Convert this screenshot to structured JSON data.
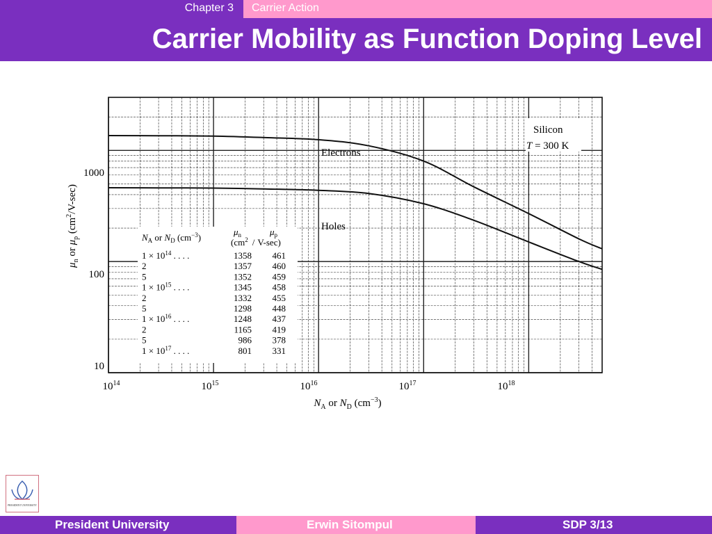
{
  "header": {
    "chapter": "Chapter 3",
    "section": "Carrier Action",
    "title": "Carrier Mobility as Function Doping Level"
  },
  "footer": {
    "left": "President University",
    "center": "Erwin Sitompul",
    "right": "SDP 3/13"
  },
  "logo": {
    "name": "PRESIDENT UNIVERSITY"
  },
  "chart_data": {
    "type": "line",
    "xscale": "log",
    "yscale": "log",
    "xlim": [
      100000000000000.0,
      5e+18
    ],
    "ylim": [
      10,
      3000
    ],
    "x_ticks": [
      "10",
      "10",
      "10",
      "10",
      "10"
    ],
    "x_tick_exps": [
      "14",
      "15",
      "16",
      "17",
      "18"
    ],
    "y_ticks": [
      "1000",
      "100",
      "10"
    ],
    "xlabel": {
      "a": "N",
      "a_sub": "A",
      "or": " or ",
      "b": "N",
      "b_sub": "D",
      "unit": " (cm",
      "unit_sup": "−3",
      "close": ")"
    },
    "ylabel": {
      "a": "μ",
      "a_sub": "n",
      "or": " or ",
      "b": "μ",
      "b_sub": "p",
      "unit": " (cm",
      "unit_sup": "2",
      "close": "/V-sec)"
    },
    "annotation": {
      "line1": "Silicon",
      "line2_a": "T",
      "line2_b": " = 300 K"
    },
    "series": [
      {
        "name": "Electrons",
        "x": [
          100000000000000.0,
          300000000000000.0,
          1000000000000000.0,
          3000000000000000.0,
          1e+16,
          3e+16,
          1e+17,
          3e+17,
          1e+18,
          3e+18,
          5e+18
        ],
        "values": [
          1358,
          1355,
          1345,
          1305,
          1248,
          1100,
          801,
          470,
          270,
          160,
          130
        ]
      },
      {
        "name": "Holes",
        "x": [
          100000000000000.0,
          300000000000000.0,
          1000000000000000.0,
          3000000000000000.0,
          1e+16,
          3e+16,
          1e+17,
          3e+17,
          1e+18,
          3e+18,
          5e+18
        ],
        "values": [
          461,
          460,
          458,
          450,
          437,
          410,
          331,
          235,
          150,
          100,
          85
        ]
      }
    ],
    "table": {
      "header": {
        "col1_a": "N",
        "col1_a_sub": "A",
        "col1_or": " or ",
        "col1_b": "N",
        "col1_b_sub": "D",
        "col1_unit": " (cm",
        "col1_unit_sup": "−3",
        "col1_close": ")",
        "col2_sym": "μ",
        "col2_sub": "n",
        "col3_sym": "μ",
        "col3_sub": "p",
        "units_a": "(cm",
        "units_sup": "2",
        "units_sep": "/",
        "units_b": "V-sec)"
      },
      "rows": [
        {
          "mant": "1 × 10",
          "exp": "14",
          "dots": " . . . .",
          "mn": "1358",
          "mp": "461"
        },
        {
          "mant": "2",
          "exp": "",
          "dots": "",
          "mn": "1357",
          "mp": "460"
        },
        {
          "mant": "5",
          "exp": "",
          "dots": "",
          "mn": "1352",
          "mp": "459"
        },
        {
          "mant": "1 × 10",
          "exp": "15",
          "dots": " . . . .",
          "mn": "1345",
          "mp": "458"
        },
        {
          "mant": "2",
          "exp": "",
          "dots": "",
          "mn": "1332",
          "mp": "455"
        },
        {
          "mant": "5",
          "exp": "",
          "dots": "",
          "mn": "1298",
          "mp": "448"
        },
        {
          "mant": "1 × 10",
          "exp": "16",
          "dots": " . . . .",
          "mn": "1248",
          "mp": "437"
        },
        {
          "mant": "2",
          "exp": "",
          "dots": "",
          "mn": "1165",
          "mp": "419"
        },
        {
          "mant": "5",
          "exp": "",
          "dots": "",
          "mn": "986",
          "mp": "378"
        },
        {
          "mant": "1 × 10",
          "exp": "17",
          "dots": " . . . .",
          "mn": "801",
          "mp": "331"
        }
      ]
    }
  }
}
